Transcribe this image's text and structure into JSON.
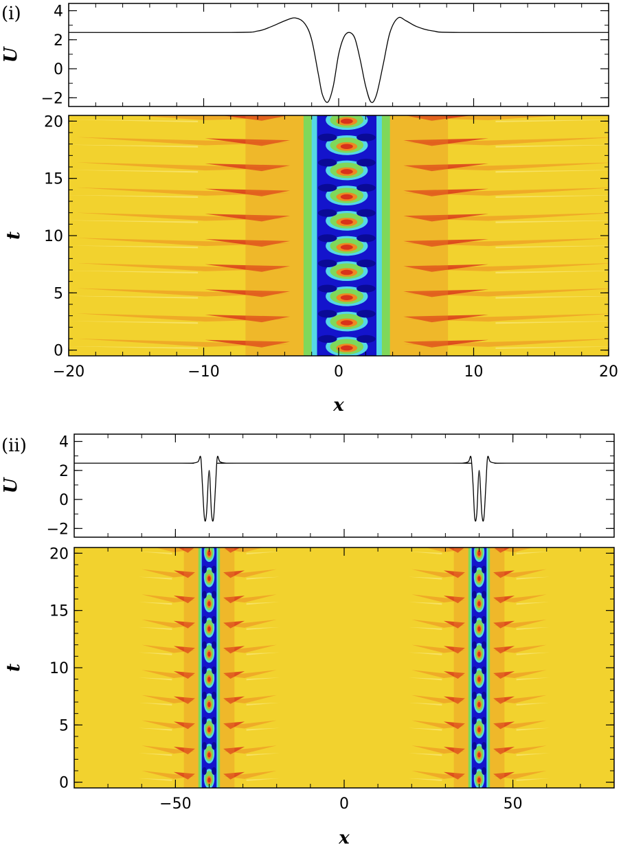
{
  "chart_data": [
    {
      "panel": "(i)",
      "type": "line",
      "ylabel": "U",
      "xlim": [
        -20,
        20
      ],
      "ylim": [
        -2.6,
        4.5
      ],
      "yticks": [
        -2,
        0,
        2,
        4
      ],
      "ytick_labels": [
        "−2",
        "0",
        "2",
        "4"
      ],
      "series": [
        {
          "x": [
            -20,
            -8,
            -6,
            -5,
            -4,
            -3.2,
            -2.5,
            -2,
            -1.5,
            -1.2,
            -0.8,
            -0.4,
            0,
            0.4,
            0.8,
            1.2,
            1.6,
            2.0,
            2.4,
            2.8,
            3.3,
            3.8,
            4.4,
            5.0,
            5.8,
            7,
            9,
            20
          ],
          "y": [
            2.5,
            2.5,
            2.6,
            2.9,
            3.3,
            3.5,
            3.1,
            2.0,
            -0.4,
            -1.8,
            -2.3,
            -1.2,
            1.0,
            2.2,
            2.5,
            2.1,
            0.6,
            -1.2,
            -2.3,
            -1.8,
            0.3,
            2.5,
            3.5,
            3.3,
            2.9,
            2.6,
            2.5,
            2.5
          ]
        }
      ]
    },
    {
      "panel": "(i)",
      "type": "heatmap",
      "xlabel": "x",
      "ylabel": "t",
      "xlim": [
        -20,
        20
      ],
      "ylim": [
        -0.5,
        20.5
      ],
      "xticks": [
        -20,
        -10,
        0,
        10,
        20
      ],
      "xtick_labels": [
        "−20",
        "−10",
        "0",
        "10",
        "20"
      ],
      "yticks": [
        0,
        5,
        10,
        15,
        20
      ],
      "ytick_labels": [
        "0",
        "5",
        "10",
        "15",
        "20"
      ],
      "centers": [
        0.6
      ],
      "breathing_period": 2.2,
      "colors": {
        "background": "#f2d22e",
        "orange": "#ec8a22",
        "red": "#d8321a",
        "green": "#7fd85a",
        "cyan": "#55d8e6",
        "blue": "#1414cc",
        "navy": "#0a0a96"
      }
    },
    {
      "panel": "(ii)",
      "type": "line",
      "ylabel": "U",
      "xlim": [
        -80,
        80
      ],
      "ylim": [
        -2.6,
        4.5
      ],
      "yticks": [
        -2,
        0,
        2,
        4
      ],
      "ytick_labels": [
        "−2",
        "0",
        "2",
        "4"
      ],
      "series": [
        {
          "x": [
            -80,
            -48,
            -45,
            -43.3,
            -42.5,
            -42.0,
            -41.4,
            -40.8,
            -40.0,
            -39.3,
            -38.7,
            -38.1,
            -37.6,
            -36.8,
            -35,
            -32,
            32,
            35,
            36.8,
            37.6,
            38.2,
            38.7,
            39.3,
            40.0,
            40.8,
            41.4,
            42.0,
            42.5,
            43.3,
            45,
            48,
            80
          ],
          "y": [
            2.5,
            2.5,
            2.5,
            2.6,
            2.9,
            1.0,
            -1.3,
            -1.0,
            2.0,
            -1.0,
            -1.3,
            1.0,
            2.9,
            2.6,
            2.5,
            2.5,
            2.5,
            2.5,
            2.6,
            2.9,
            1.0,
            -1.3,
            -1.0,
            2.0,
            -1.0,
            -1.3,
            1.0,
            2.9,
            2.6,
            2.5,
            2.5,
            2.5
          ]
        }
      ]
    },
    {
      "panel": "(ii)",
      "type": "heatmap",
      "xlabel": "x",
      "ylabel": "t",
      "xlim": [
        -80,
        80
      ],
      "ylim": [
        -0.5,
        20.5
      ],
      "xticks": [
        -50,
        0,
        50
      ],
      "xtick_labels": [
        "−50",
        "0",
        "50"
      ],
      "yticks": [
        0,
        5,
        10,
        15,
        20
      ],
      "ytick_labels": [
        "0",
        "5",
        "10",
        "15",
        "20"
      ],
      "centers": [
        -40,
        40
      ],
      "breathing_period": 2.2,
      "colors": {
        "background": "#f2d22e",
        "orange": "#ec8a22",
        "red": "#d8321a",
        "green": "#7fd85a",
        "cyan": "#55d8e6",
        "blue": "#1414cc",
        "navy": "#0a0a96"
      }
    }
  ]
}
